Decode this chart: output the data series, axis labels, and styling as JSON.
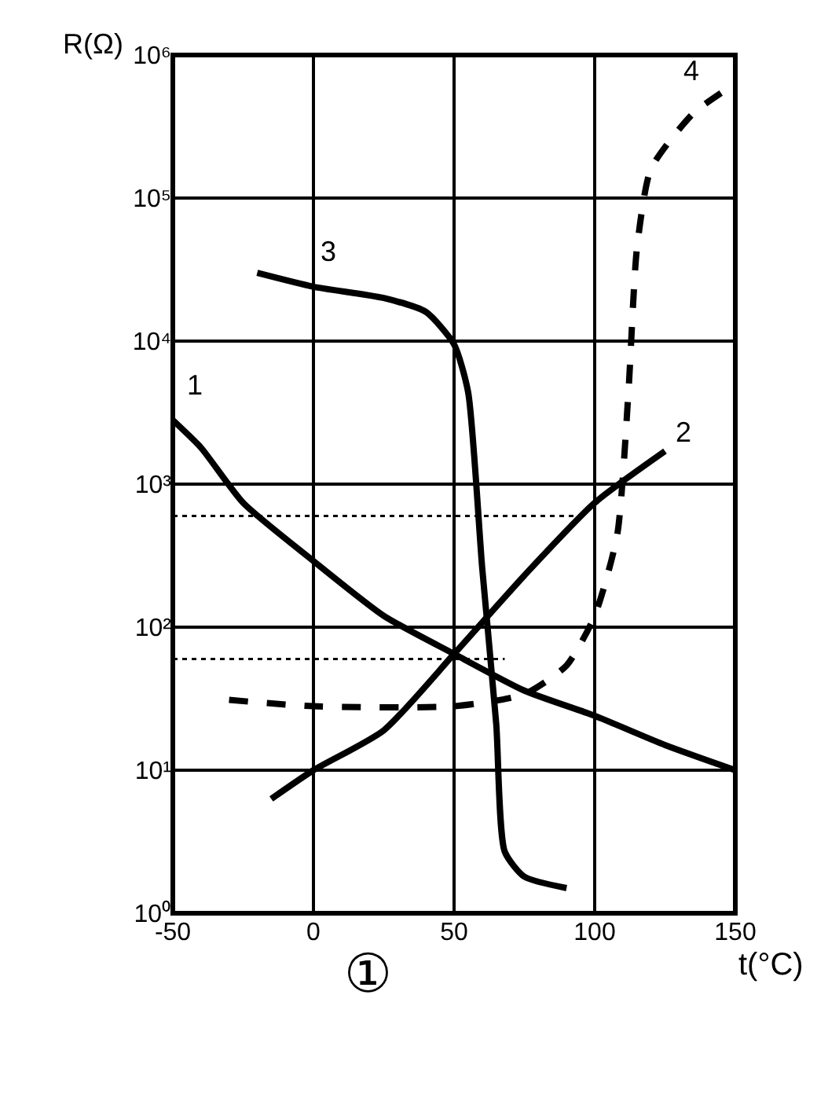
{
  "chart_data": {
    "type": "line",
    "xlabel": "t(°C)",
    "ylabel": "R(Ω)",
    "log": "y",
    "grid": true,
    "legend": false,
    "marker": "none",
    "xlim": [
      -50,
      150
    ],
    "xticks": [
      -50,
      0,
      50,
      100,
      150
    ],
    "ylim": [
      1,
      1000000
    ],
    "yticks": [
      {
        "value": 1,
        "label": "10⁰"
      },
      {
        "value": 10,
        "label": "10¹"
      },
      {
        "value": 100,
        "label": "10²"
      },
      {
        "value": 1000,
        "label": "10³"
      },
      {
        "value": 10000,
        "label": "10⁴"
      },
      {
        "value": 100000,
        "label": "10⁵"
      },
      {
        "value": 1000000,
        "label": "10⁶"
      }
    ],
    "series": [
      {
        "name": "1",
        "color": "#000000",
        "line_style": "solid",
        "x": [
          -50,
          -40,
          -25,
          0,
          25,
          50,
          75,
          100,
          125,
          150
        ],
        "values": [
          2800,
          1800,
          740,
          290,
          120,
          65,
          36,
          24,
          15,
          10
        ]
      },
      {
        "name": "2",
        "color": "#000000",
        "line_style": "solid",
        "x": [
          -15,
          0,
          25,
          50,
          75,
          100,
          125
        ],
        "values": [
          6.3,
          10,
          19,
          65,
          230,
          740,
          1700
        ]
      },
      {
        "name": "3",
        "color": "#000000",
        "line_style": "solid",
        "x": [
          -20,
          0,
          25,
          40,
          50,
          55,
          60,
          65,
          68,
          75,
          90
        ],
        "values": [
          30000,
          24000,
          20000,
          16000,
          9500,
          4400,
          260,
          21,
          2.7,
          1.8,
          1.5
        ]
      },
      {
        "name": "4",
        "color": "#000000",
        "line_style": "dashed",
        "x": [
          -30,
          0,
          50,
          75,
          90,
          100,
          108,
          112,
          115,
          120,
          135,
          150
        ],
        "values": [
          31,
          28,
          28,
          34,
          54,
          120,
          440,
          4400,
          44000,
          160000,
          390000,
          630000
        ]
      },
      {
        "color": "#000000",
        "line_style": "dotted",
        "x": [
          -50,
          97
        ],
        "values": [
          600,
          600
        ]
      },
      {
        "color": "#000000",
        "line_style": "dotted",
        "x": [
          -50,
          68
        ],
        "values": [
          60,
          60
        ]
      }
    ],
    "annotations": [
      "①"
    ]
  }
}
